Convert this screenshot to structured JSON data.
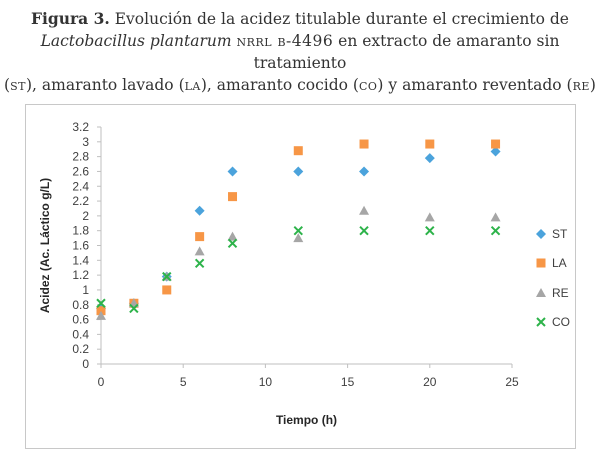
{
  "caption": {
    "label": "Figura 3.",
    "line1": " Evolución de la acidez titulable durante el crecimiento de",
    "organism": "Lactobacillus plantarum",
    "strain": "NRRL B-4496",
    "line2_rest": " en extracto de amaranto sin tratamiento",
    "line3": {
      "open1": "(",
      "st": "ST",
      "t1": "), amaranto lavado (",
      "la": "LA",
      "t2": "), amaranto cocido (",
      "co": "CO",
      "t3": ") y amaranto reventado (",
      "re": "RE",
      "close": ")"
    }
  },
  "chart_data": {
    "type": "scatter",
    "xlabel": "Tiempo (h)",
    "ylabel": "Acidez (Ac. Láctico g/L)",
    "xlim": [
      0,
      25
    ],
    "ylim": [
      0,
      3.2
    ],
    "xticks": [
      0,
      5,
      10,
      15,
      20,
      25
    ],
    "yticks": [
      0,
      0.2,
      0.4,
      0.6,
      0.8,
      1,
      1.2,
      1.4,
      1.6,
      1.8,
      2,
      2.2,
      2.4,
      2.6,
      2.8,
      3,
      3.2
    ],
    "grid": false,
    "legend_position": "right",
    "series": [
      {
        "name": "ST",
        "marker": "diamond",
        "color": "#4ba3dc",
        "x": [
          0,
          2,
          4,
          6,
          8,
          12,
          16,
          20,
          24
        ],
        "y": [
          0.75,
          0.82,
          1.18,
          2.07,
          2.6,
          2.6,
          2.6,
          2.78,
          2.87
        ]
      },
      {
        "name": "LA",
        "marker": "square",
        "color": "#f79646",
        "x": [
          0,
          2,
          4,
          6,
          8,
          12,
          16,
          20,
          24
        ],
        "y": [
          0.72,
          0.82,
          1.0,
          1.72,
          2.26,
          2.88,
          2.97,
          2.97,
          2.97
        ]
      },
      {
        "name": "RE",
        "marker": "triangle",
        "color": "#a6a6a6",
        "x": [
          0,
          2,
          4,
          6,
          8,
          12,
          16,
          20,
          24
        ],
        "y": [
          0.65,
          0.82,
          1.18,
          1.52,
          1.72,
          1.7,
          2.07,
          1.98,
          1.98
        ]
      },
      {
        "name": "CO",
        "marker": "x",
        "color": "#2db34a",
        "x": [
          0,
          2,
          4,
          6,
          8,
          12,
          16,
          20,
          24
        ],
        "y": [
          0.82,
          0.75,
          1.18,
          1.36,
          1.63,
          1.8,
          1.8,
          1.8,
          1.8
        ]
      }
    ]
  }
}
